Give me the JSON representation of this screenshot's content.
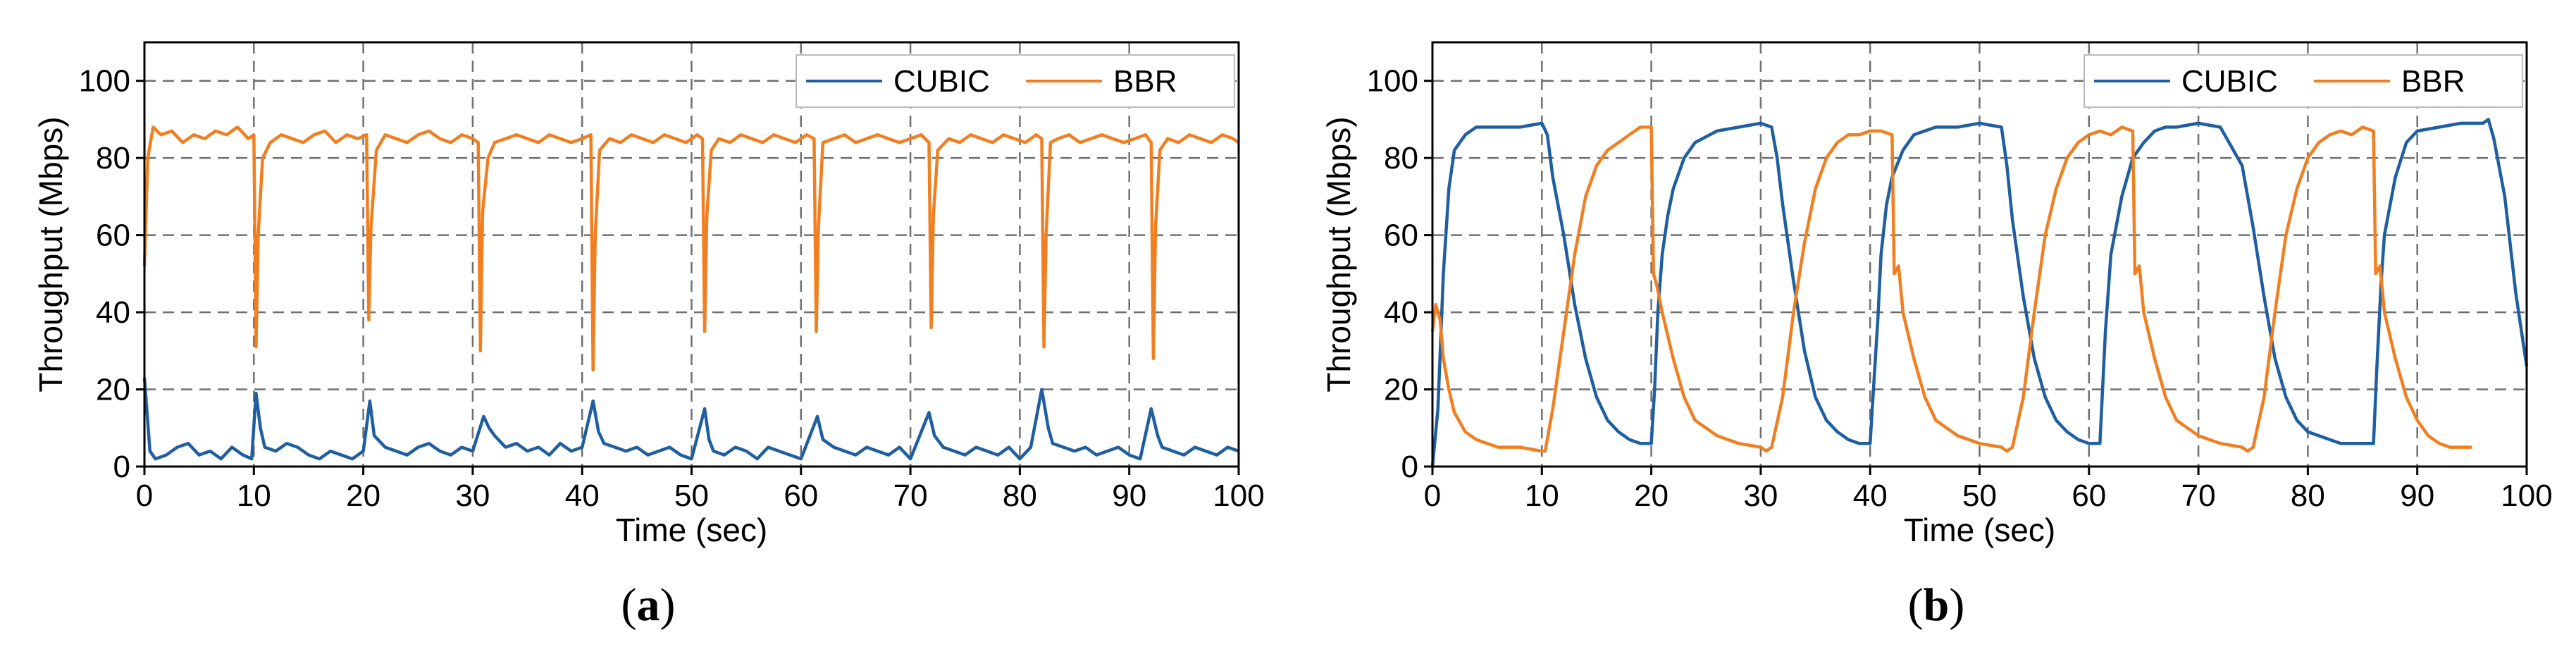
{
  "colors": {
    "cubic": "#1f5fa0",
    "bbr": "#f07f22",
    "grid": "#707070"
  },
  "chart_data": [
    {
      "type": "line",
      "caption_letter": "a",
      "xlabel": "Time (sec)",
      "ylabel": "Throughput (Mbps)",
      "xlim": [
        0,
        100
      ],
      "ylim": [
        0,
        110
      ],
      "xticks": [
        0,
        10,
        20,
        30,
        40,
        50,
        60,
        70,
        80,
        90,
        100
      ],
      "yticks": [
        0,
        20,
        40,
        60,
        80,
        100
      ],
      "grid": true,
      "legend": {
        "position": "top-right",
        "entries": [
          "CUBIC",
          "BBR"
        ]
      },
      "series": [
        {
          "name": "CUBIC",
          "x": [
            0,
            0.5,
            1,
            2,
            3,
            4,
            5,
            6,
            7,
            8,
            9,
            9.8,
            10.2,
            10.6,
            11,
            12,
            13,
            14,
            15,
            16,
            17,
            18,
            19,
            20,
            20.6,
            21,
            22,
            23,
            24,
            25,
            26,
            27,
            28,
            29,
            30,
            31,
            31.5,
            32,
            33,
            34,
            35,
            36,
            37,
            38,
            39,
            40,
            41,
            41.5,
            42,
            43,
            44,
            45,
            46,
            47,
            48,
            49,
            50,
            51.2,
            51.6,
            52,
            53,
            54,
            55,
            56,
            57,
            58,
            59,
            60,
            61.5,
            62,
            63,
            64,
            65,
            66,
            67,
            68,
            69,
            70,
            71.7,
            72.2,
            73,
            74,
            75,
            76,
            77,
            78,
            79,
            80,
            81,
            82,
            82.6,
            83,
            84,
            85,
            86,
            87,
            88,
            89,
            90,
            91,
            92,
            92.6,
            93,
            94,
            95,
            96,
            97,
            98,
            99,
            100
          ],
          "values": [
            23,
            4,
            2,
            3,
            5,
            6,
            3,
            4,
            2,
            5,
            3,
            2,
            19,
            10,
            5,
            4,
            6,
            5,
            3,
            2,
            4,
            3,
            2,
            4,
            17,
            8,
            5,
            4,
            3,
            5,
            6,
            4,
            3,
            5,
            4,
            13,
            10,
            8,
            5,
            6,
            4,
            5,
            3,
            6,
            4,
            5,
            17,
            9,
            6,
            5,
            4,
            5,
            3,
            4,
            5,
            3,
            2,
            15,
            7,
            4,
            3,
            5,
            4,
            2,
            5,
            4,
            3,
            2,
            13,
            7,
            5,
            4,
            3,
            5,
            4,
            3,
            5,
            2,
            14,
            8,
            5,
            4,
            3,
            5,
            4,
            3,
            5,
            2,
            5,
            20,
            10,
            6,
            5,
            4,
            5,
            3,
            4,
            5,
            3,
            2,
            15,
            8,
            5,
            4,
            3,
            5,
            4,
            3,
            5,
            4
          ]
        },
        {
          "name": "BBR",
          "x": [
            0,
            0.3,
            0.8,
            1.5,
            2.5,
            3.5,
            4.5,
            5.5,
            6.5,
            7.5,
            8.5,
            9.5,
            10,
            10.2,
            10.4,
            10.8,
            11.5,
            12.5,
            13.5,
            14.5,
            15.5,
            16.5,
            17.5,
            18.5,
            19.5,
            20.3,
            20.5,
            20.7,
            21.2,
            22,
            23,
            24,
            25,
            26,
            27,
            28,
            29,
            30,
            30.5,
            30.7,
            30.9,
            31.4,
            32,
            33,
            34,
            35,
            36,
            37,
            38,
            39,
            40,
            40.8,
            41,
            41.2,
            41.6,
            42.5,
            43.5,
            44.5,
            45.5,
            46.5,
            47.5,
            48.5,
            49.5,
            50.5,
            51,
            51.2,
            51.4,
            51.8,
            52.5,
            53.5,
            54.5,
            55.5,
            56.5,
            57.5,
            58.5,
            59.5,
            60.5,
            61.2,
            61.4,
            61.6,
            62,
            63,
            64,
            65,
            66,
            67,
            68,
            69,
            70,
            71,
            71.7,
            71.9,
            72.1,
            72.5,
            73.5,
            74.5,
            75.5,
            76.5,
            77.5,
            78.5,
            79.5,
            80.5,
            81.5,
            82,
            82.2,
            82.4,
            82.8,
            83.5,
            84.5,
            85.5,
            86.5,
            87.5,
            88.5,
            89.5,
            90.5,
            91.5,
            92,
            92.2,
            92.4,
            92.8,
            93.5,
            94.5,
            95.5,
            96.5,
            97.5,
            98.5,
            99.5,
            100
          ],
          "values": [
            52,
            80,
            88,
            86,
            87,
            84,
            86,
            85,
            87,
            86,
            88,
            85,
            86,
            31,
            60,
            80,
            84,
            86,
            85,
            84,
            86,
            87,
            84,
            86,
            85,
            86,
            38,
            62,
            82,
            86,
            85,
            84,
            86,
            87,
            85,
            84,
            86,
            85,
            84,
            30,
            66,
            80,
            84,
            85,
            86,
            85,
            84,
            86,
            85,
            84,
            85,
            86,
            25,
            60,
            82,
            85,
            84,
            86,
            85,
            84,
            86,
            85,
            84,
            86,
            85,
            35,
            65,
            82,
            85,
            84,
            86,
            85,
            84,
            86,
            85,
            84,
            86,
            85,
            35,
            62,
            84,
            85,
            86,
            84,
            85,
            86,
            85,
            84,
            85,
            86,
            84,
            36,
            65,
            82,
            85,
            84,
            86,
            85,
            84,
            86,
            85,
            84,
            86,
            85,
            31,
            60,
            84,
            85,
            86,
            84,
            85,
            86,
            85,
            84,
            85,
            86,
            84,
            28,
            62,
            82,
            85,
            84,
            86,
            85,
            84,
            86,
            85,
            84
          ]
        }
      ]
    },
    {
      "type": "line",
      "caption_letter": "b",
      "xlabel": "Time (sec)",
      "ylabel": "Throughput (Mbps)",
      "xlim": [
        0,
        100
      ],
      "ylim": [
        0,
        110
      ],
      "xticks": [
        0,
        10,
        20,
        30,
        40,
        50,
        60,
        70,
        80,
        90,
        100
      ],
      "yticks": [
        0,
        20,
        40,
        60,
        80,
        100
      ],
      "grid": true,
      "legend": {
        "position": "top-right",
        "entries": [
          "CUBIC",
          "BBR"
        ]
      },
      "series": [
        {
          "name": "CUBIC",
          "x": [
            0,
            0.5,
            1,
            1.5,
            2,
            3,
            4,
            6,
            8,
            10,
            10.5,
            11,
            12,
            13,
            14,
            15,
            16,
            17,
            18,
            19,
            20,
            20.3,
            20.6,
            21,
            21.5,
            22,
            23,
            24,
            26,
            28,
            30,
            31,
            31.5,
            32,
            33,
            34,
            35,
            36,
            37,
            38,
            39,
            40,
            40.3,
            40.7,
            41,
            41.5,
            42,
            43,
            44,
            46,
            48,
            50,
            52,
            52.5,
            53,
            54,
            55,
            56,
            57,
            58,
            59,
            60,
            61,
            61.5,
            62,
            63,
            64,
            65,
            66,
            67,
            68,
            70,
            72,
            74,
            75,
            76,
            77,
            78,
            79,
            80,
            81,
            82,
            83,
            84,
            85,
            86,
            86.3,
            86.7,
            87,
            88,
            89,
            90,
            92,
            94,
            96,
            96.5,
            97,
            98,
            99,
            100
          ],
          "values": [
            0,
            15,
            50,
            72,
            82,
            86,
            88,
            88,
            88,
            89,
            86,
            75,
            60,
            42,
            28,
            18,
            12,
            9,
            7,
            6,
            6,
            20,
            40,
            55,
            65,
            72,
            80,
            84,
            87,
            88,
            89,
            88,
            80,
            68,
            48,
            30,
            18,
            12,
            9,
            7,
            6,
            6,
            20,
            38,
            55,
            68,
            75,
            82,
            86,
            88,
            88,
            89,
            88,
            78,
            64,
            44,
            28,
            18,
            12,
            9,
            7,
            6,
            6,
            35,
            55,
            70,
            80,
            84,
            87,
            88,
            88,
            89,
            88,
            78,
            62,
            44,
            28,
            18,
            12,
            9,
            8,
            7,
            6,
            6,
            6,
            6,
            25,
            48,
            60,
            75,
            84,
            87,
            88,
            89,
            89,
            90,
            85,
            70,
            45,
            26
          ]
        },
        {
          "name": "BBR",
          "x": [
            0,
            0.3,
            0.7,
            1,
            1.5,
            2,
            3,
            4,
            5,
            6,
            8,
            10,
            10.3,
            11,
            12,
            13,
            14,
            15,
            16,
            17,
            18,
            19,
            20,
            20.2,
            20.5,
            21,
            22,
            23,
            24,
            26,
            28,
            30,
            30.5,
            31,
            32,
            33,
            34,
            35,
            36,
            37,
            38,
            39,
            40,
            41,
            42,
            42.2,
            42.6,
            43,
            44,
            45,
            46,
            48,
            50,
            52,
            52.5,
            53,
            54,
            55,
            56,
            57,
            58,
            59,
            60,
            61,
            62,
            63,
            64,
            64.2,
            64.6,
            65,
            66,
            67,
            68,
            70,
            72,
            74,
            74.5,
            75,
            76,
            77,
            78,
            79,
            80,
            81,
            82,
            83,
            84,
            85,
            86,
            86.2,
            86.6,
            87,
            88,
            89,
            90,
            91,
            92,
            93,
            95
          ],
          "values": [
            35,
            42,
            38,
            28,
            20,
            14,
            9,
            7,
            6,
            5,
            5,
            4,
            4,
            15,
            35,
            55,
            70,
            78,
            82,
            84,
            86,
            88,
            88,
            50,
            47,
            40,
            28,
            18,
            12,
            8,
            6,
            5,
            4,
            5,
            18,
            40,
            58,
            72,
            80,
            84,
            86,
            86,
            87,
            87,
            86,
            50,
            52,
            40,
            28,
            18,
            12,
            8,
            6,
            5,
            4,
            5,
            18,
            40,
            60,
            72,
            80,
            84,
            86,
            87,
            86,
            88,
            87,
            50,
            52,
            40,
            28,
            18,
            12,
            8,
            6,
            5,
            4,
            5,
            18,
            40,
            60,
            72,
            80,
            84,
            86,
            87,
            86,
            88,
            87,
            50,
            52,
            40,
            28,
            18,
            12,
            8,
            6,
            5,
            5
          ]
        }
      ]
    }
  ]
}
